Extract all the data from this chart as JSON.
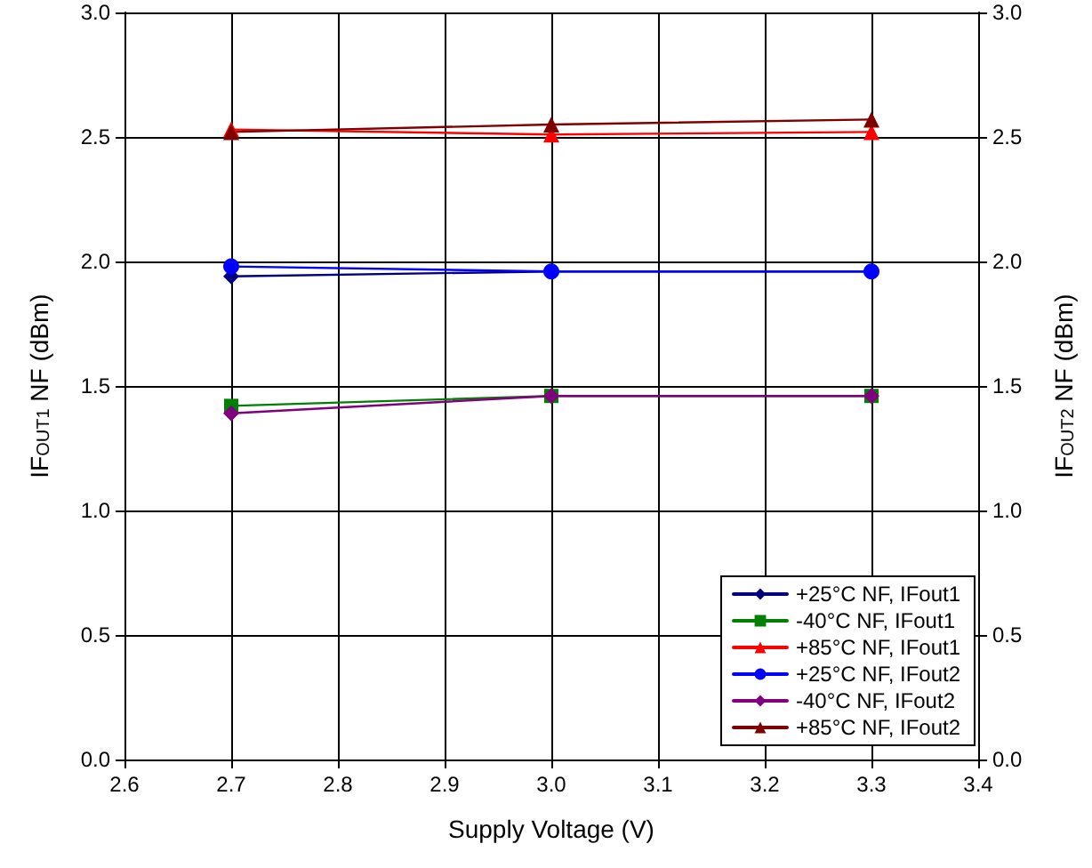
{
  "chart_data": {
    "type": "line",
    "xlabel": "Supply Voltage (V)",
    "ylabel": "IF$_{OUT1}$ NF (dBm)",
    "y2label": "IF$_{OUT2}$ NF (dBm)",
    "x": [
      2.7,
      3.0,
      3.3
    ],
    "series": [
      {
        "name": "+25°C NF, IFout1",
        "color": "#000080",
        "marker": "diamond",
        "values": [
          1.94,
          1.96,
          1.96
        ]
      },
      {
        "name": "-40°C NF, IFout1",
        "color": "#008000",
        "marker": "square",
        "values": [
          1.42,
          1.46,
          1.46
        ]
      },
      {
        "name": "+85°C NF, IFout1",
        "color": "#ff0000",
        "marker": "triangle",
        "values": [
          2.53,
          2.51,
          2.52
        ]
      },
      {
        "name": "+25°C NF, IFout2",
        "color": "#0000ff",
        "marker": "circle",
        "values": [
          1.98,
          1.96,
          1.96
        ]
      },
      {
        "name": "-40°C NF, IFout2",
        "color": "#800080",
        "marker": "diamond",
        "values": [
          1.39,
          1.46,
          1.46
        ]
      },
      {
        "name": "+85°C NF, IFout2",
        "color": "#800000",
        "marker": "triangle",
        "values": [
          2.52,
          2.55,
          2.57
        ]
      }
    ],
    "xlim": [
      2.6,
      3.4
    ],
    "xticks": [
      {
        "value": 2.6,
        "label": "2.6"
      },
      {
        "value": 2.7,
        "label": "2.7"
      },
      {
        "value": 2.8,
        "label": "2.8"
      },
      {
        "value": 2.9,
        "label": "2.9"
      },
      {
        "value": 3.0,
        "label": "3.0"
      },
      {
        "value": 3.1,
        "label": "3.1"
      },
      {
        "value": 3.2,
        "label": "3.2"
      },
      {
        "value": 3.3,
        "label": "3.3"
      },
      {
        "value": 3.4,
        "label": "3.4"
      }
    ],
    "ylim": [
      0,
      3
    ],
    "yticks": [
      {
        "value": 0,
        "label": "0.0"
      },
      {
        "value": 0.5,
        "label": "0.5"
      },
      {
        "value": 1,
        "label": "1.0"
      },
      {
        "value": 1.5,
        "label": "1.5"
      },
      {
        "value": 2,
        "label": "2.0"
      },
      {
        "value": 2.5,
        "label": "2.5"
      },
      {
        "value": 3,
        "label": "3.0"
      }
    ],
    "y2lim": [
      0,
      3
    ],
    "y2ticks": [
      {
        "value": 0,
        "label": "0.0"
      },
      {
        "value": 0.5,
        "label": "0.5"
      },
      {
        "value": 1,
        "label": "1.0"
      },
      {
        "value": 1.5,
        "label": "1.5"
      },
      {
        "value": 2,
        "label": "2.0"
      },
      {
        "value": 2.5,
        "label": "2.5"
      },
      {
        "value": 3,
        "label": "3.0"
      }
    ],
    "grid": true,
    "legend": "bottom right",
    "line_style": "solid"
  }
}
